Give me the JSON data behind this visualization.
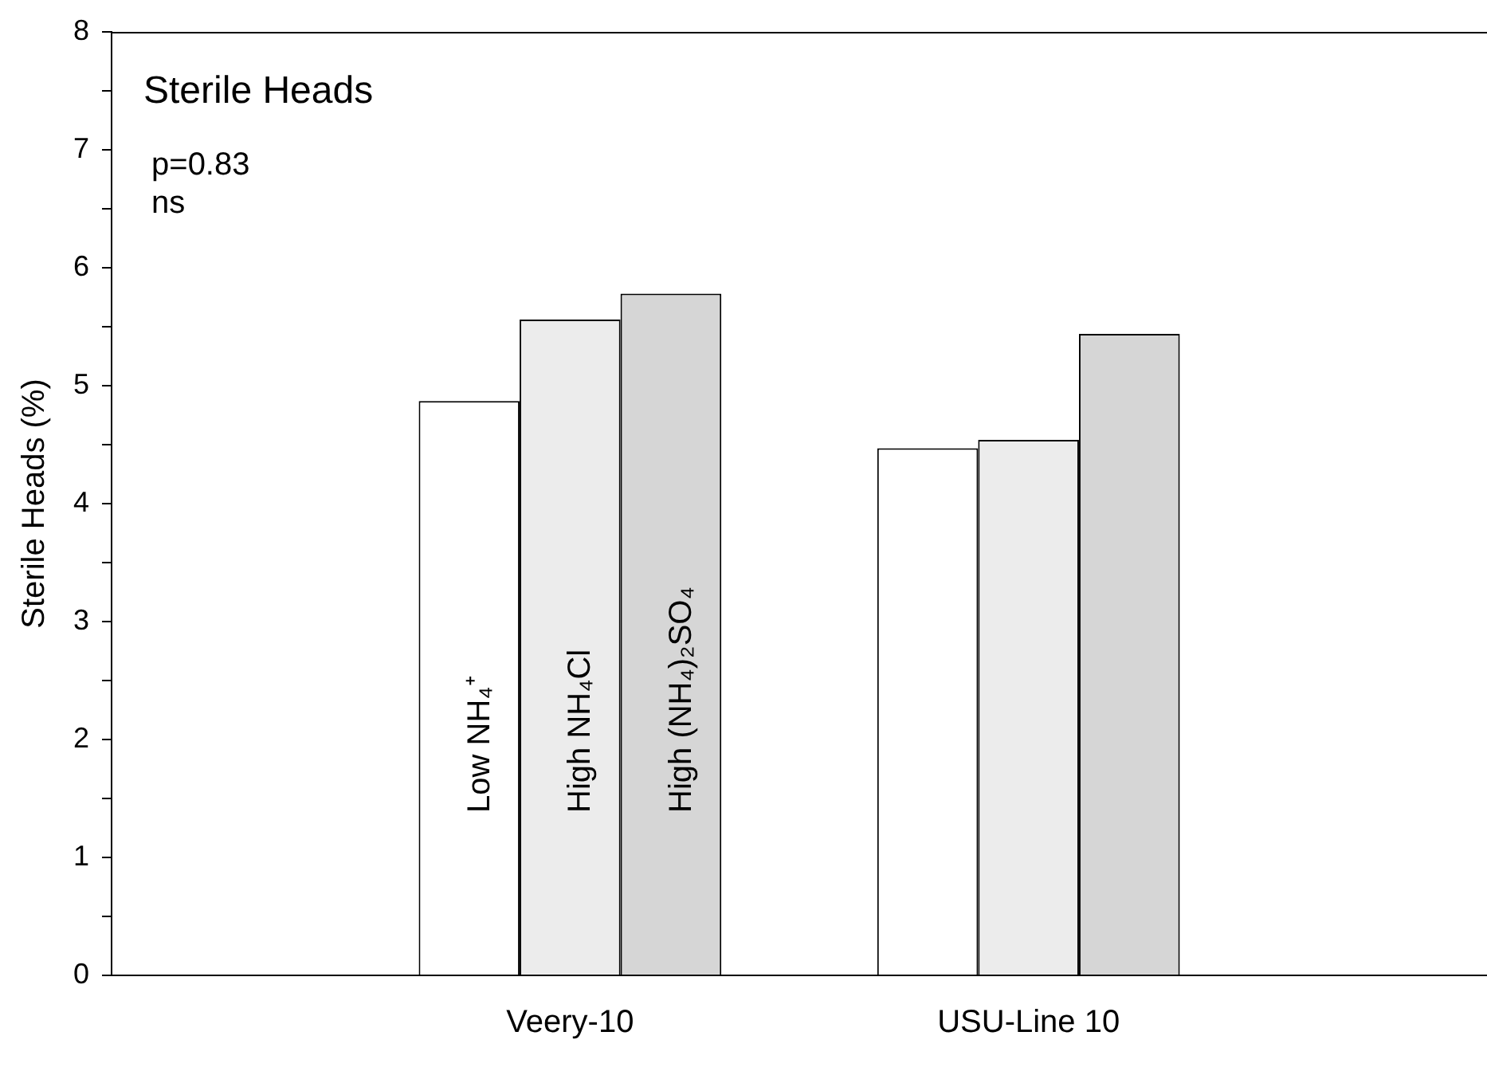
{
  "chart_data": {
    "type": "bar",
    "title": "Sterile Heads",
    "ylabel": "Sterile Heads (%)",
    "categories": [
      "Veery-10",
      "USU-Line 10"
    ],
    "series": [
      {
        "name": "Low NH₄⁺",
        "color": "#ffffff",
        "values": [
          4.87,
          4.47
        ]
      },
      {
        "name": "High NH₄Cl",
        "color": "#ececec",
        "values": [
          5.56,
          4.54
        ]
      },
      {
        "name": "High (NH₄)₂SO₄",
        "color": "#d6d6d6",
        "values": [
          5.78,
          5.44
        ]
      }
    ],
    "ylim": [
      0,
      8
    ],
    "yticks": [
      0,
      {
        "value": 0.5,
        "label": null
      },
      1,
      {
        "value": 1.5,
        "label": null
      },
      2,
      {
        "value": 2.5,
        "label": null
      },
      3,
      {
        "value": 3.5,
        "label": null
      },
      4,
      {
        "value": 4.5,
        "label": null
      },
      5,
      {
        "value": 5.5,
        "label": null
      },
      6,
      {
        "value": 6.5,
        "label": null
      },
      7,
      {
        "value": 7.5,
        "label": null
      },
      8
    ],
    "annotations": [
      "p=0.83",
      "ns"
    ],
    "grid": false,
    "legend": false
  }
}
